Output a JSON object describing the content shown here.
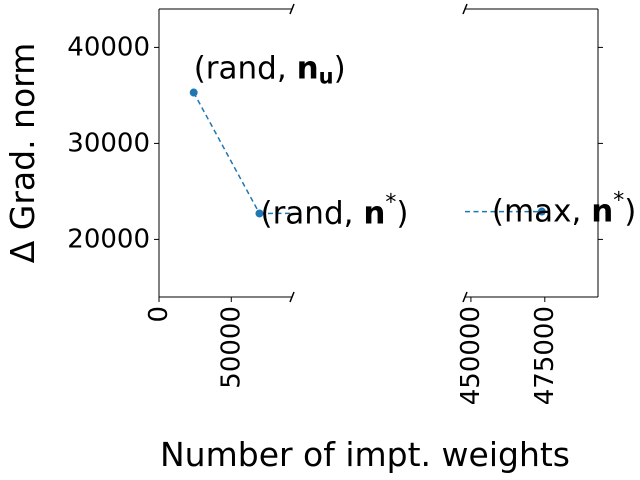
{
  "chart_data": {
    "type": "line",
    "title": "",
    "xlabel": "Number of impt. weights",
    "ylabel": "Δ Grad. norm",
    "broken_x_axis": true,
    "panels": [
      {
        "xlim": [
          0,
          92000
        ],
        "xticks": [
          0,
          50000
        ]
      },
      {
        "xlim": [
          448000,
          493000
        ],
        "xticks": [
          450000,
          475000
        ]
      }
    ],
    "ylim": [
      14000,
      44000
    ],
    "yticks": [
      20000,
      30000,
      40000
    ],
    "ytick_labels": [
      "20000",
      "30000",
      "40000"
    ],
    "grid": false,
    "series": [
      {
        "color": "#1f77b4",
        "linestyle": "dashed",
        "marker": "circle",
        "points": [
          {
            "x": 24000,
            "y": 35300,
            "label_prefix": "(rand, ",
            "label_bold": "n",
            "label_sub": "u",
            "label_sup": "",
            "label_suffix": ")"
          },
          {
            "x": 69500,
            "y": 22700,
            "label_prefix": "(rand, ",
            "label_bold": "n",
            "label_sub": "",
            "label_sup": "*",
            "label_suffix": ")"
          },
          {
            "x": 474000,
            "y": 22900,
            "label_prefix": "(max, ",
            "label_bold": "n",
            "label_sub": "",
            "label_sup": "*",
            "label_suffix": ")"
          }
        ]
      }
    ]
  }
}
